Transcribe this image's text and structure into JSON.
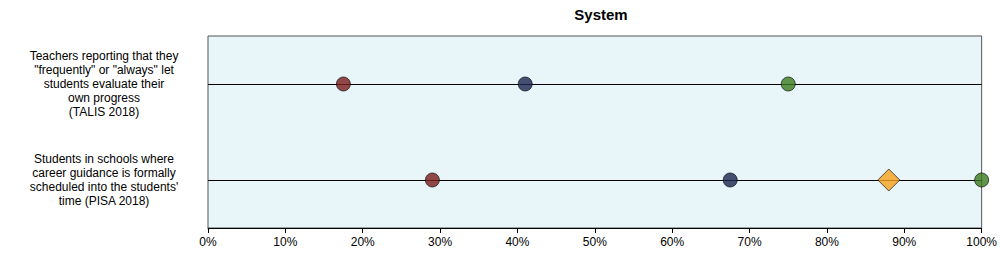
{
  "chart_data": {
    "type": "scatter",
    "title": "System",
    "orientation": "horizontal",
    "categories": [
      "Teachers reporting that they\n\"frequently\" or \"always\" let\nstudents evaluate their\nown progress\n(TALIS 2018)",
      "Students in schools where\ncareer guidance is formally\nscheduled into the students'\ntime (PISA 2018)"
    ],
    "series": [
      {
        "color": "#7b1c1c",
        "marker": "circle",
        "values": [
          17.5,
          29
        ]
      },
      {
        "color": "#1a2550",
        "marker": "circle",
        "values": [
          41,
          67.5
        ]
      },
      {
        "color": "#3b7a1e",
        "marker": "circle",
        "values": [
          75,
          100
        ]
      },
      {
        "color": "#f7a11a",
        "marker": "diamond",
        "values": [
          null,
          88
        ]
      }
    ],
    "xlim": [
      0,
      100
    ],
    "xticks": [
      {
        "value": 0,
        "label": "0%"
      },
      {
        "value": 10,
        "label": "10%"
      },
      {
        "value": 20,
        "label": "20%"
      },
      {
        "value": 30,
        "label": "30%"
      },
      {
        "value": 40,
        "label": "40%"
      },
      {
        "value": 50,
        "label": "50%"
      },
      {
        "value": 60,
        "label": "60%"
      },
      {
        "value": 70,
        "label": "70%"
      },
      {
        "value": 80,
        "label": "80%"
      },
      {
        "value": 90,
        "label": "90%"
      },
      {
        "value": 100,
        "label": "100%"
      }
    ],
    "grid": false
  }
}
